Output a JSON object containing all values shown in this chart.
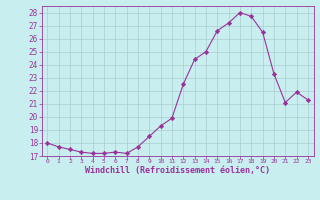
{
  "x": [
    0,
    1,
    2,
    3,
    4,
    5,
    6,
    7,
    8,
    9,
    10,
    11,
    12,
    13,
    14,
    15,
    16,
    17,
    18,
    19,
    20,
    21,
    22,
    23
  ],
  "y": [
    18.0,
    17.7,
    17.5,
    17.3,
    17.2,
    17.2,
    17.3,
    17.2,
    17.7,
    18.5,
    19.3,
    19.9,
    22.5,
    24.4,
    25.0,
    26.6,
    27.2,
    28.0,
    27.7,
    26.5,
    23.3,
    21.1,
    21.9,
    21.3
  ],
  "line_color": "#993399",
  "marker": "D",
  "marker_size": 2.2,
  "bg_color": "#c8eef0",
  "grid_color": "#aacccc",
  "xlabel": "Windchill (Refroidissement éolien,°C)",
  "xlabel_color": "#993399",
  "tick_color": "#993399",
  "ylim": [
    17,
    28.5
  ],
  "xlim": [
    -0.5,
    23.5
  ],
  "yticks": [
    17,
    18,
    19,
    20,
    21,
    22,
    23,
    24,
    25,
    26,
    27,
    28
  ],
  "xticks": [
    0,
    1,
    2,
    3,
    4,
    5,
    6,
    7,
    8,
    9,
    10,
    11,
    12,
    13,
    14,
    15,
    16,
    17,
    18,
    19,
    20,
    21,
    22,
    23
  ],
  "axis_color": "#993399"
}
